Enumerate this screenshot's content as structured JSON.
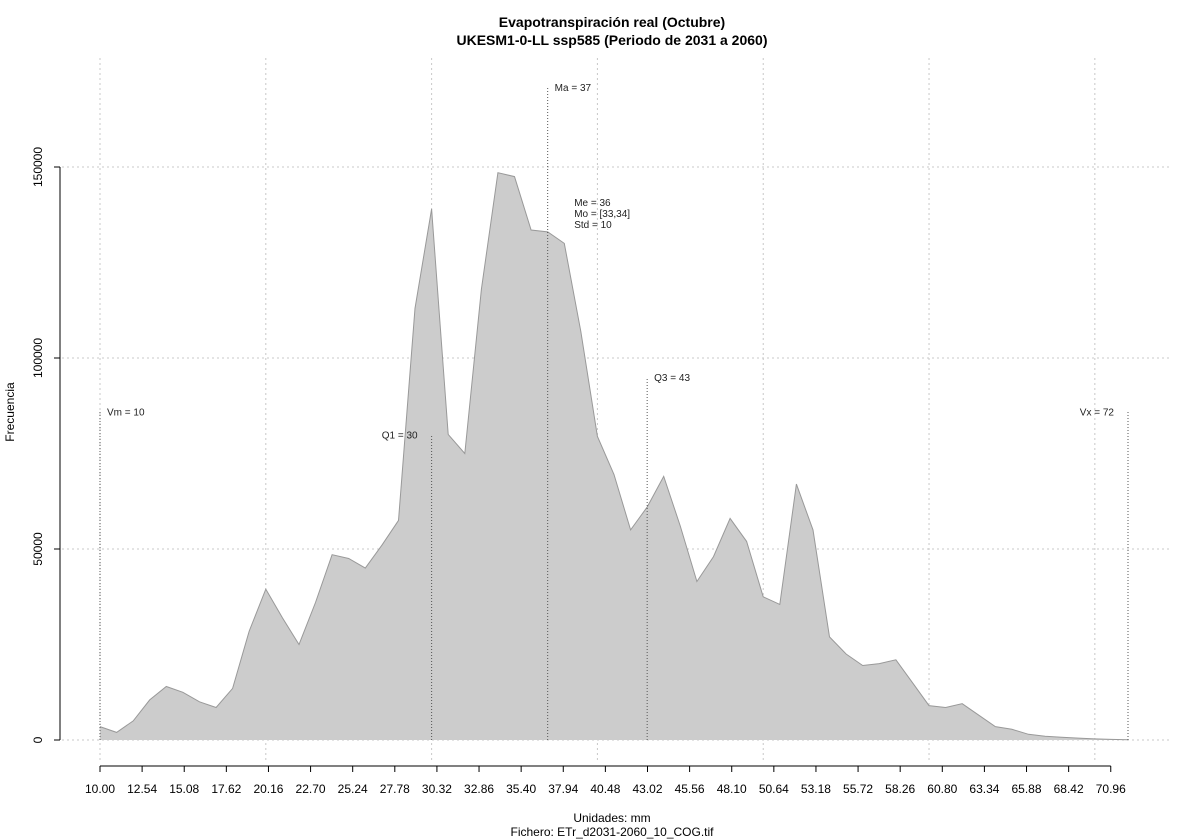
{
  "chart_data": {
    "type": "area",
    "title": "Evapotranspiración real (Octubre)",
    "subtitle": "UKESM1-0-LL ssp585 (Periodo de 2031 a 2060)",
    "xlabel": "Unidades: mm",
    "ylabel": "Frecuencia",
    "footer": "Fichero: ETr_d2031-2060_10_COG.tif",
    "xlim": [
      10.0,
      72.0
    ],
    "ylim": [
      0,
      150000
    ],
    "grid": true,
    "fill_color": "#cccccc",
    "line_color": "#999999",
    "x_ticks": [
      10.0,
      12.54,
      15.08,
      17.62,
      20.16,
      22.7,
      25.24,
      27.78,
      30.32,
      32.86,
      35.4,
      37.94,
      40.48,
      43.02,
      45.56,
      48.1,
      50.64,
      53.18,
      55.72,
      58.26,
      60.8,
      63.34,
      65.88,
      68.42,
      70.96
    ],
    "x_tick_labels": [
      "10.00",
      "12.54",
      "15.08",
      "17.62",
      "20.16",
      "22.70",
      "25.24",
      "27.78",
      "30.32",
      "32.86",
      "35.40",
      "37.94",
      "40.48",
      "43.02",
      "45.56",
      "48.10",
      "50.64",
      "53.18",
      "55.72",
      "58.26",
      "60.80",
      "63.34",
      "65.88",
      "68.42",
      "70.96"
    ],
    "y_ticks": [
      0,
      50000,
      100000,
      150000
    ],
    "y_tick_labels": [
      "0",
      "50000",
      "100000",
      "150000"
    ],
    "x": [
      10.0,
      11.0,
      12.0,
      13.0,
      14.0,
      15.0,
      16.0,
      17.0,
      18.0,
      19.0,
      20.0,
      21.0,
      22.0,
      23.0,
      24.0,
      25.0,
      26.0,
      27.0,
      28.0,
      29.0,
      30.0,
      31.0,
      32.0,
      33.0,
      34.0,
      35.0,
      36.0,
      37.0,
      38.0,
      39.0,
      40.0,
      41.0,
      42.0,
      43.0,
      44.0,
      45.0,
      46.0,
      47.0,
      48.0,
      49.0,
      50.0,
      51.0,
      52.0,
      53.0,
      54.0,
      55.0,
      56.0,
      57.0,
      58.0,
      59.0,
      60.0,
      61.0,
      62.0,
      63.0,
      64.0,
      65.0,
      66.0,
      67.0,
      68.0,
      69.0,
      70.0,
      71.0,
      72.0
    ],
    "y": [
      3500,
      2000,
      5000,
      10500,
      14000,
      12500,
      10000,
      8500,
      13500,
      28500,
      39500,
      32000,
      25000,
      36000,
      48500,
      47500,
      45000,
      51000,
      57500,
      113000,
      139000,
      80000,
      75000,
      118000,
      148500,
      147500,
      133500,
      133000,
      130000,
      107000,
      79500,
      69500,
      55000,
      61000,
      69000,
      56000,
      41500,
      48000,
      58000,
      52000,
      37500,
      35500,
      67000,
      55000,
      27000,
      22500,
      19500,
      20000,
      21000,
      15000,
      9000,
      8500,
      9500,
      6500,
      3500,
      2800,
      1500,
      1000,
      700,
      500,
      300,
      150,
      50
    ],
    "markers": [
      {
        "name": "Vm",
        "label": "Vm = 10",
        "x": 10,
        "y_top": 86000,
        "label_side": "right"
      },
      {
        "name": "Q1",
        "label": "Q1 = 30",
        "x": 30,
        "y_top": 80000,
        "label_side": "left"
      },
      {
        "name": "Ma",
        "label": "Ma = 37",
        "x": 37,
        "y_top": 171000,
        "label_side": "right"
      },
      {
        "name": "Q3",
        "label": "Q3 = 43",
        "x": 43,
        "y_top": 95000,
        "label_side": "right"
      },
      {
        "name": "Vx",
        "label": "Vx = 72",
        "x": 72,
        "y_top": 86000,
        "label_side": "left"
      }
    ],
    "stats_box": [
      "Me = 36",
      "Mo = [33,34]",
      "Std = 10"
    ],
    "stats_box_anchor_x": 38.6
  }
}
